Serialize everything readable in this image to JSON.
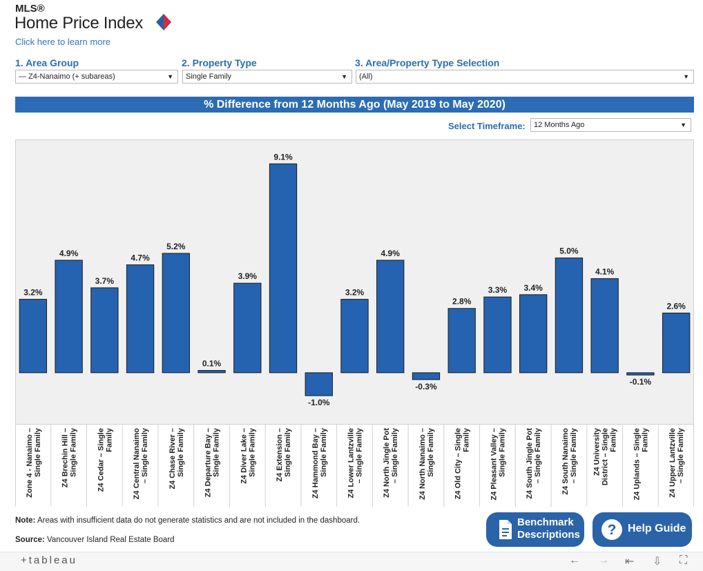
{
  "header": {
    "mls": "MLS®",
    "title": "Home Price Index",
    "learn_more": "Click here to learn more"
  },
  "filters": [
    {
      "num": "1.",
      "label": "Area Group",
      "value": "— Z4-Nanaimo (+ subareas)"
    },
    {
      "num": "2.",
      "label": "Property Type",
      "value": "Single Family"
    },
    {
      "num": "3.",
      "label": "Area/Property Type Selection",
      "value": "(All)"
    }
  ],
  "banner": "% Difference from 12 Months Ago (May 2019 to May 2020)",
  "timeframe": {
    "label": "Select Timeframe:",
    "value": "12 Months Ago"
  },
  "chart_data": {
    "type": "bar",
    "categories": [
      [
        "Zone 4 - Nanaimo –",
        "Single Family"
      ],
      [
        "Z4 Brechin Hill –",
        "Single Family"
      ],
      [
        "Z4 Cedar – Single",
        "Family"
      ],
      [
        "Z4 Central Nanaimo",
        "– Single Family"
      ],
      [
        "Z4 Chase River –",
        "Single Family"
      ],
      [
        "Z4 Departure Bay –",
        "Single Family"
      ],
      [
        "Z4 Diver Lake –",
        "Single Family"
      ],
      [
        "Z4 Extension –",
        "Single Family"
      ],
      [
        "Z4 Hammond Bay –",
        "Single Family"
      ],
      [
        "Z4 Lower Lantzville",
        "– Single Family"
      ],
      [
        "Z4 North Jingle Pot",
        "– Single Family"
      ],
      [
        "Z4 North Nanaimo –",
        "Single Family"
      ],
      [
        "Z4 Old City – Single",
        "Family"
      ],
      [
        "Z4 Pleasant Valley –",
        "Single Family"
      ],
      [
        "Z4 South Jingle Pot",
        "– Single Family"
      ],
      [
        "Z4 South Nanaimo",
        "– Single Family"
      ],
      [
        "Z4 University",
        "District – Single",
        "Family"
      ],
      [
        "Z4 Uplands – Single",
        "Family"
      ],
      [
        "Z4 Upper Lantzville",
        "– Single Family"
      ]
    ],
    "values": [
      3.2,
      4.9,
      3.7,
      4.7,
      5.2,
      0.1,
      3.9,
      9.1,
      -1.0,
      3.2,
      4.9,
      -0.3,
      2.8,
      3.3,
      3.4,
      5.0,
      4.1,
      -0.1,
      2.6
    ],
    "labels": [
      "3.2%",
      "4.9%",
      "3.7%",
      "4.7%",
      "5.2%",
      "0.1%",
      "3.9%",
      "9.1%",
      "-1.0%",
      "3.2%",
      "4.9%",
      "-0.3%",
      "2.8%",
      "3.3%",
      "3.4%",
      "5.0%",
      "4.1%",
      "-0.1%",
      "2.6%"
    ],
    "bar_color": "#2563b0",
    "ylim": [
      -1.9,
      9.8
    ],
    "grid": false
  },
  "note": {
    "bold": "Note:",
    "text": " Areas with insufficient data do not generate statistics and are not included in the dashboard."
  },
  "source": {
    "bold": "Source:",
    "text": " Vancouver Island Real Estate Board"
  },
  "buttons": {
    "benchmark": [
      "Benchmark",
      "Descriptions"
    ],
    "help": "Help Guide"
  },
  "footer": {
    "logo": "+tableau",
    "icons": [
      "undo-icon",
      "redo-icon",
      "revert-icon",
      "download-icon",
      "fullscreen-icon"
    ]
  }
}
